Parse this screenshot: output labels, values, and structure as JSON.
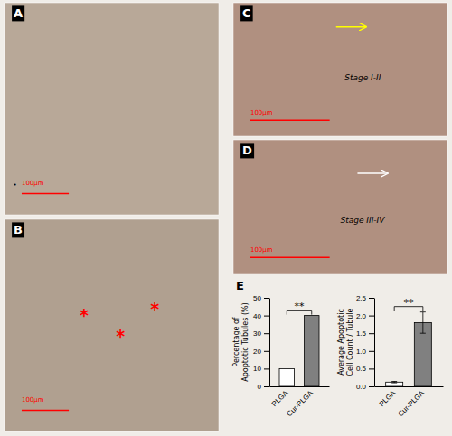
{
  "chart_data": [
    {
      "type": "bar",
      "categories": [
        "PLGA",
        "Cur-PLGA"
      ],
      "values": [
        10,
        40
      ],
      "ylabel": "Percentage of\nApoptotic Tubules (%)",
      "ylim": [
        0,
        50
      ],
      "yticks": [
        0,
        10,
        20,
        30,
        40,
        50
      ],
      "colors": [
        "white",
        "gray"
      ],
      "annotations": [
        "**"
      ]
    },
    {
      "type": "bar",
      "categories": [
        "PLGA",
        "Cur-PLGA"
      ],
      "values": [
        0.12,
        1.8
      ],
      "errors": [
        0.02,
        0.3
      ],
      "ylabel": "Average Apoptotic\nCell Count / Tubule",
      "ylim": [
        0,
        2.5
      ],
      "yticks": [
        {
          "value": 0,
          "label": "0.0"
        },
        0.5,
        {
          "value": 1,
          "label": "1.0"
        },
        1.5,
        {
          "value": 2,
          "label": "2.0"
        },
        2.5
      ],
      "colors": [
        "white",
        "gray"
      ],
      "annotations": [
        "**"
      ]
    }
  ],
  "panels": [
    {
      "label": "A",
      "scalebar": "100μm",
      "annotations": [
        "•"
      ]
    },
    {
      "label": "B",
      "scalebar": "100μm",
      "annotations": [
        "*",
        "*",
        "*"
      ]
    },
    {
      "label": "C",
      "scalebar": "100μm",
      "annotations": [
        "Stage I-II"
      ]
    },
    {
      "label": "D",
      "scalebar": "100μm",
      "annotations": [
        "Stage III-IV"
      ]
    },
    {
      "label": "E"
    }
  ]
}
